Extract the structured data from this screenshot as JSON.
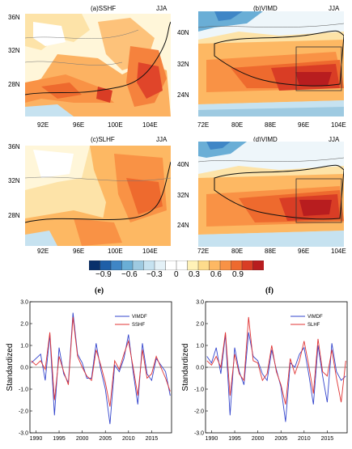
{
  "panels": {
    "a": {
      "title": "(a)SSHF",
      "season": "JJA",
      "ylabels": [
        "36N",
        "32N",
        "28N"
      ],
      "xlabels": [
        "92E",
        "96E",
        "100E",
        "104E"
      ]
    },
    "b": {
      "title": "(b)VIMD",
      "season": "JJA",
      "ylabels": [
        "40N",
        "32N",
        "24N"
      ],
      "xlabels": [
        "72E",
        "80E",
        "88E",
        "96E",
        "104E"
      ]
    },
    "c": {
      "title": "(c)SLHF",
      "season": "JJA",
      "ylabels": [
        "36N",
        "32N",
        "28N"
      ],
      "xlabels": [
        "92E",
        "96E",
        "100E",
        "104E"
      ]
    },
    "d": {
      "title": "(d)VIMD",
      "season": "JJA",
      "ylabels": [
        "40N",
        "32N",
        "24N"
      ],
      "xlabels": [
        "72E",
        "80E",
        "88E",
        "96E",
        "104E"
      ]
    }
  },
  "colorbar": {
    "ticks": [
      "−0.9",
      "−0.6",
      "−0.3",
      "0",
      "0.3",
      "0.6",
      "0.9"
    ],
    "colors": [
      "#08306b",
      "#1f5fa8",
      "#3f86c6",
      "#6aaed6",
      "#9ecae1",
      "#c6e2f0",
      "#e4f1f7",
      "#ffffff",
      "#ffffff",
      "#fff2b8",
      "#fddc8c",
      "#fdb863",
      "#f99245",
      "#ee6a2e",
      "#d93d25",
      "#b81d1f"
    ]
  },
  "chart_data": [
    {
      "panel": "(e)",
      "type": "line",
      "ylabel": "Standardized",
      "ylim": [
        -3.0,
        3.0
      ],
      "yticks": [
        "3.0",
        "2.0",
        "1.0",
        "0.0",
        "-1.0",
        "-2.0",
        "-3.0"
      ],
      "xticks": [
        "1990",
        "1995",
        "2000",
        "2005",
        "2010",
        "2015"
      ],
      "x": [
        1989,
        1990,
        1991,
        1992,
        1993,
        1994,
        1995,
        1996,
        1997,
        1998,
        1999,
        2000,
        2001,
        2002,
        2003,
        2004,
        2005,
        2006,
        2007,
        2008,
        2009,
        2010,
        2011,
        2012,
        2013,
        2014,
        2015,
        2016,
        2017,
        2018,
        2019
      ],
      "series": [
        {
          "name": "VIMDF",
          "color": "#3344cc",
          "values": [
            0.2,
            0.4,
            0.6,
            -0.6,
            1.5,
            -2.2,
            0.9,
            -0.3,
            -0.7,
            2.5,
            0.6,
            0.2,
            -0.5,
            -0.5,
            1.1,
            -0.1,
            -1.0,
            -2.6,
            0.1,
            -0.2,
            0.4,
            1.5,
            -0.2,
            -1.7,
            1.1,
            -0.3,
            -0.6,
            0.4,
            0.1,
            -0.2,
            -1.3
          ]
        },
        {
          "name": "SSHF",
          "color": "#e03333",
          "values": [
            0.3,
            0.1,
            0.3,
            -0.1,
            1.6,
            -1.5,
            0.5,
            -0.2,
            -0.8,
            2.3,
            0.5,
            0.0,
            -0.4,
            -0.6,
            0.8,
            0.1,
            -0.7,
            -1.8,
            0.3,
            -0.1,
            0.6,
            1.2,
            0.0,
            -1.3,
            0.8,
            -0.5,
            -0.3,
            0.5,
            0.0,
            -0.5,
            -1.1
          ]
        }
      ]
    },
    {
      "panel": "(f)",
      "type": "line",
      "ylabel": "Standardized",
      "ylim": [
        -3.0,
        3.0
      ],
      "yticks": [
        "3.0",
        "2.0",
        "1.0",
        "0.0",
        "-1.0",
        "-2.0",
        "-3.0"
      ],
      "xticks": [
        "1990",
        "1995",
        "2000",
        "2005",
        "2010",
        "2015"
      ],
      "x": [
        1989,
        1990,
        1991,
        1992,
        1993,
        1994,
        1995,
        1996,
        1997,
        1998,
        1999,
        2000,
        2001,
        2002,
        2003,
        2004,
        2005,
        2006,
        2007,
        2008,
        2009,
        2010,
        2011,
        2012,
        2013,
        2014,
        2015,
        2016,
        2017,
        2018,
        2019
      ],
      "series": [
        {
          "name": "VIMDF",
          "color": "#3344cc",
          "values": [
            0.5,
            0.2,
            0.9,
            -0.3,
            1.5,
            -2.2,
            0.9,
            -0.2,
            -0.8,
            1.6,
            0.5,
            0.3,
            -0.3,
            -0.6,
            0.8,
            -0.1,
            -0.9,
            -2.5,
            0.2,
            0.0,
            0.6,
            0.9,
            -0.3,
            -1.7,
            1.0,
            -0.4,
            -1.6,
            1.1,
            -0.2,
            -0.6,
            -0.4
          ]
        },
        {
          "name": "SLHF",
          "color": "#e03333",
          "values": [
            0.3,
            0.1,
            0.5,
            0.0,
            1.6,
            -1.3,
            0.6,
            -0.3,
            -0.6,
            2.3,
            0.3,
            0.2,
            -0.6,
            -0.3,
            1.0,
            -0.2,
            -0.8,
            -1.7,
            0.4,
            -0.3,
            0.3,
            1.2,
            0.1,
            -1.2,
            1.3,
            -0.2,
            -0.4,
            0.8,
            -0.5,
            -1.6,
            0.3
          ]
        }
      ]
    }
  ]
}
